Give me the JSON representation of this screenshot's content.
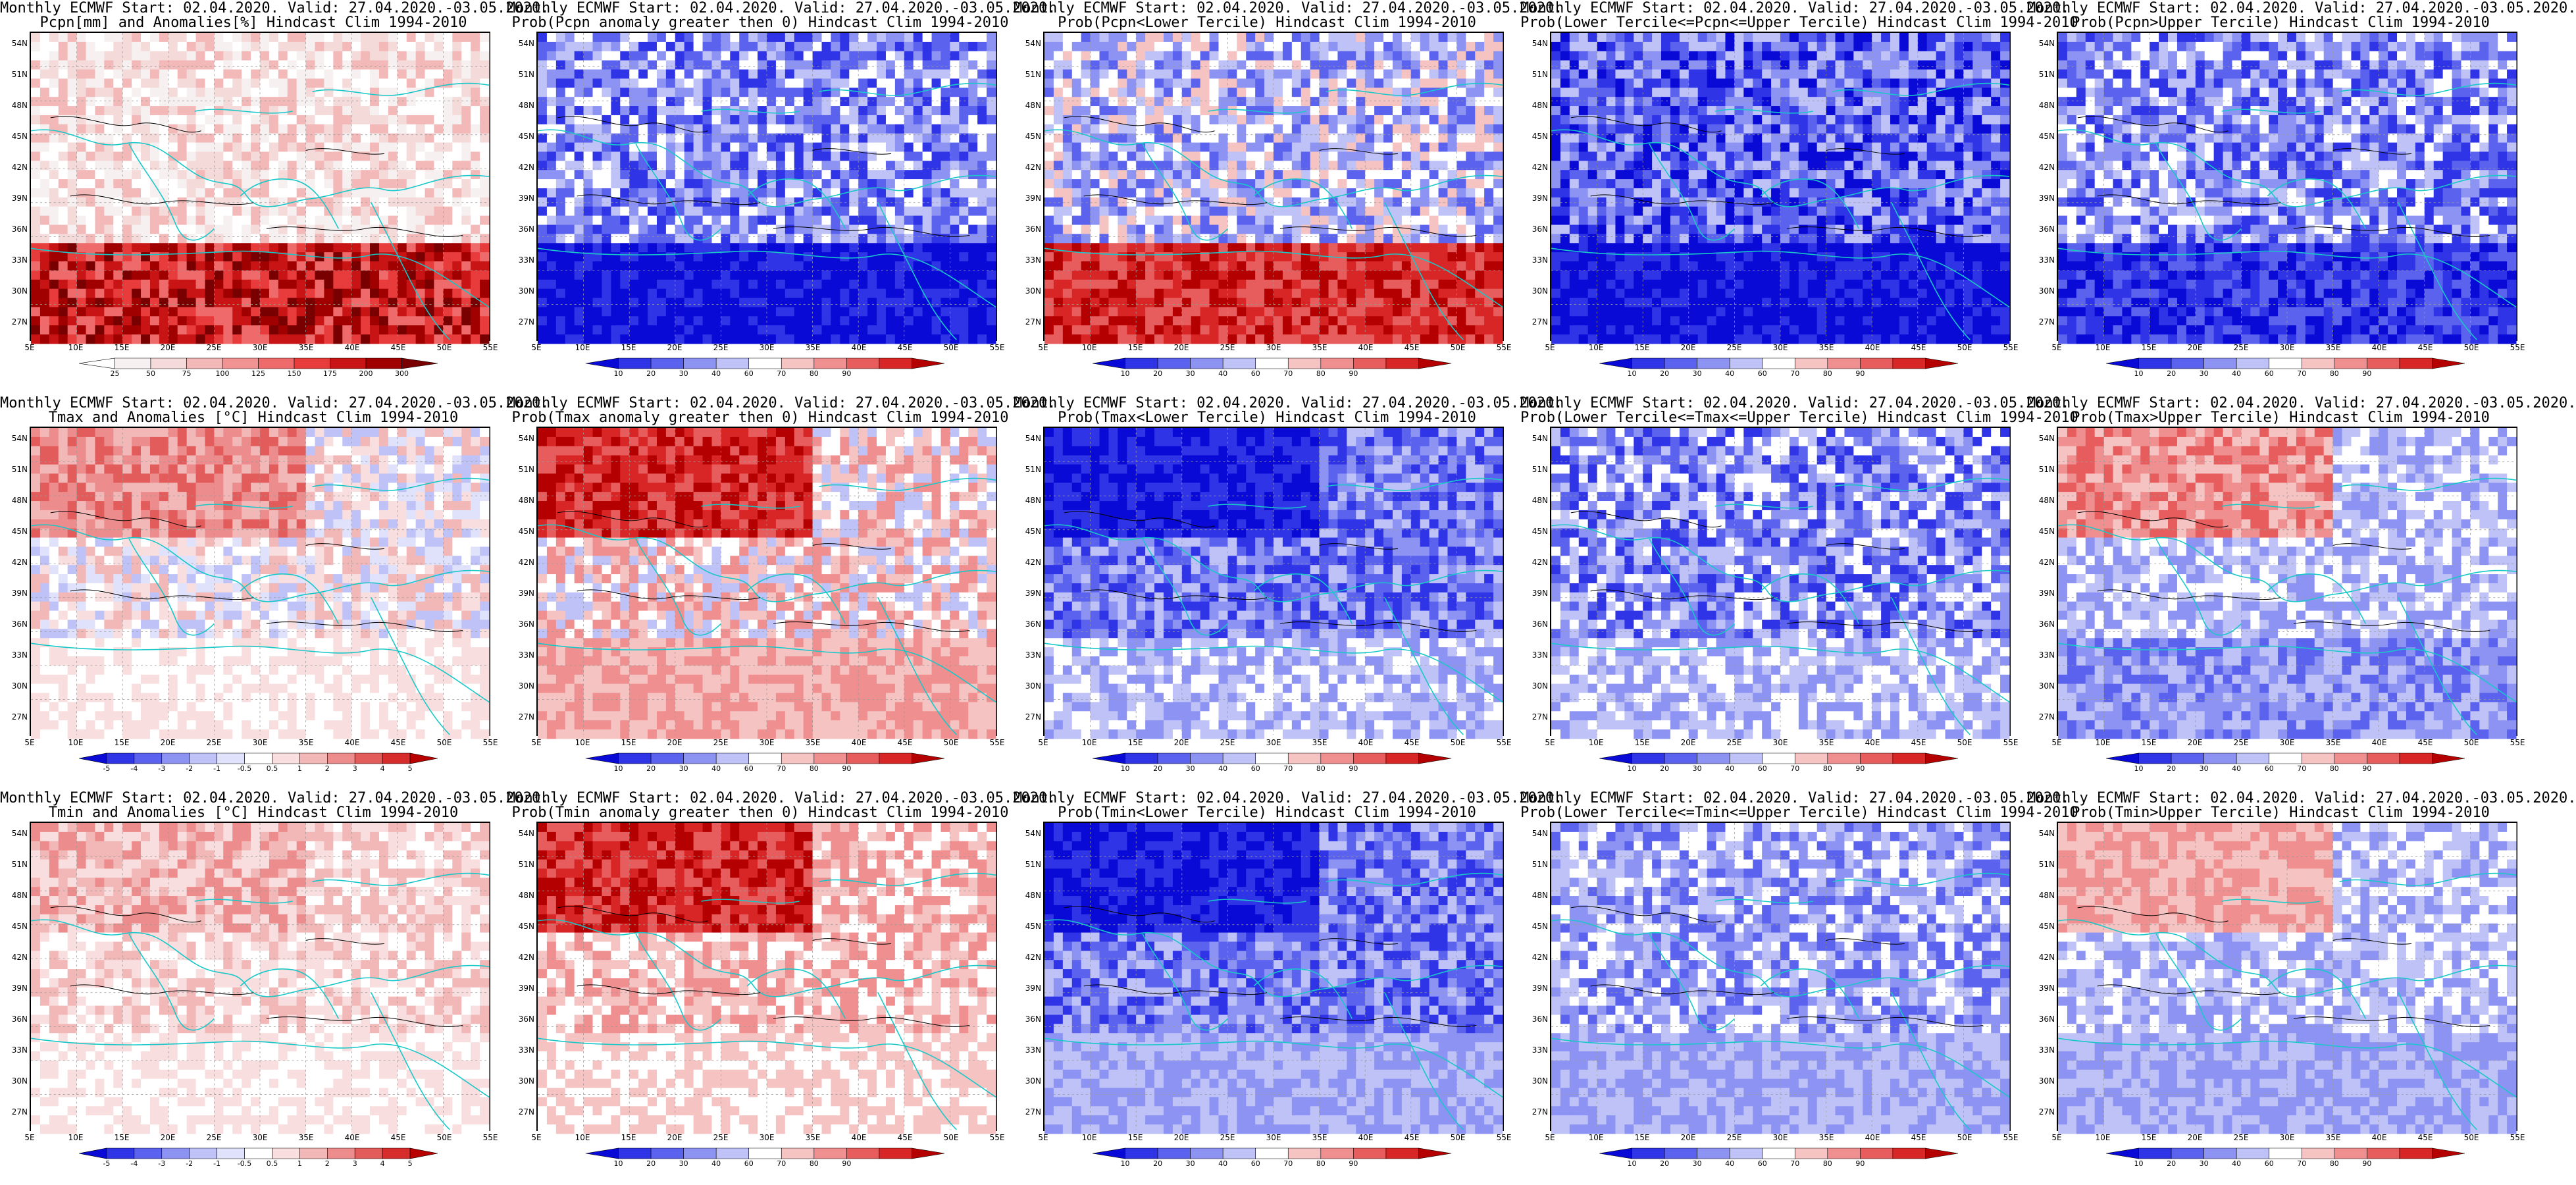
{
  "axes": {
    "y_ticks": [
      "54N",
      "51N",
      "48N",
      "45N",
      "42N",
      "39N",
      "36N",
      "33N",
      "30N",
      "27N"
    ],
    "x_ticks": [
      "5E",
      "10E",
      "15E",
      "20E",
      "25E",
      "30E",
      "35E",
      "40E",
      "45E",
      "50E",
      "55E"
    ]
  },
  "colorbars": {
    "anom_pcpn": {
      "labels": [
        "25",
        "50",
        "75",
        "100",
        "125",
        "150",
        "175",
        "200",
        "300"
      ]
    },
    "prob": {
      "labels": [
        "10",
        "20",
        "30",
        "40",
        "60",
        "70",
        "80",
        "90"
      ]
    },
    "anom_temp": {
      "labels": [
        "-5",
        "-4",
        "-3",
        "-2",
        "-1",
        "-0.5",
        "0.5",
        "1",
        "2",
        "3",
        "4",
        "5"
      ]
    }
  },
  "palettes": {
    "anom_pcpn": [
      "#ffffff",
      "#f7f0f0",
      "#f5dada",
      "#f3b9b9",
      "#f29393",
      "#ef6a6a",
      "#e83b3b",
      "#c81414",
      "#a00000",
      "#780000"
    ],
    "prob": [
      "#0a0ad6",
      "#2f34e6",
      "#5b63ee",
      "#8d93f3",
      "#bfc2f7",
      "#ffffff",
      "#f6c3c3",
      "#ef8f8f",
      "#e75d5d",
      "#d82626",
      "#b40000"
    ],
    "anom_temp": [
      "#0a0ad6",
      "#2f34e6",
      "#5b63ee",
      "#8d93f3",
      "#bfc2f7",
      "#e0e2fb",
      "#ffffff",
      "#f8dede",
      "#f2b7b7",
      "#ec8c8c",
      "#e35c5c",
      "#d62c2c",
      "#b80000"
    ]
  },
  "panels": [
    {
      "title1": "Monthly ECMWF Start: 02.04.2020. Valid: 27.04.2020.-03.05.2020.",
      "title2": "Pcpn[mm] and Anomalies[%] Hindcast Clim 1994-2010",
      "colorbar": "anom_pcpn"
    },
    {
      "title1": "Monthly ECMWF Start: 02.04.2020. Valid: 27.04.2020.-03.05.2020.",
      "title2": "Prob(Pcpn anomaly greater then 0) Hindcast Clim 1994-2010",
      "colorbar": "prob"
    },
    {
      "title1": "Monthly ECMWF Start: 02.04.2020. Valid: 27.04.2020.-03.05.2020.",
      "title2": "Prob(Pcpn<Lower Tercile) Hindcast Clim 1994-2010",
      "colorbar": "prob"
    },
    {
      "title1": "Monthly ECMWF Start: 02.04.2020. Valid: 27.04.2020.-03.05.2020.",
      "title2": "Prob(Lower Tercile<=Pcpn<=Upper Tercile) Hindcast Clim 1994-2010",
      "colorbar": "prob"
    },
    {
      "title1": "Monthly ECMWF Start: 02.04.2020. Valid: 27.04.2020.-03.05.2020.",
      "title2": "Prob(Pcpn>Upper Tercile) Hindcast Clim 1994-2010",
      "colorbar": "prob"
    },
    {
      "title1": "Monthly ECMWF Start: 02.04.2020. Valid: 27.04.2020.-03.05.2020.",
      "title2": "Tmax and Anomalies [°C] Hindcast Clim 1994-2010",
      "colorbar": "anom_temp"
    },
    {
      "title1": "Monthly ECMWF Start: 02.04.2020. Valid: 27.04.2020.-03.05.2020.",
      "title2": "Prob(Tmax anomaly greater then 0) Hindcast Clim 1994-2010",
      "colorbar": "prob"
    },
    {
      "title1": "Monthly ECMWF Start: 02.04.2020. Valid: 27.04.2020.-03.05.2020.",
      "title2": "Prob(Tmax<Lower Tercile) Hindcast Clim 1994-2010",
      "colorbar": "prob"
    },
    {
      "title1": "Monthly ECMWF Start: 02.04.2020. Valid: 27.04.2020.-03.05.2020.",
      "title2": "Prob(Lower Tercile<=Tmax<=Upper Tercile) Hindcast Clim 1994-2010",
      "colorbar": "prob"
    },
    {
      "title1": "Monthly ECMWF Start: 02.04.2020. Valid: 27.04.2020.-03.05.2020.",
      "title2": "Prob(Tmax>Upper Tercile) Hindcast Clim 1994-2010",
      "colorbar": "prob"
    },
    {
      "title1": "Monthly ECMWF Start: 02.04.2020. Valid: 27.04.2020.-03.05.2020.",
      "title2": "Tmin and Anomalies [°C] Hindcast Clim 1994-2010",
      "colorbar": "anom_temp"
    },
    {
      "title1": "Monthly ECMWF Start: 02.04.2020. Valid: 27.04.2020.-03.05.2020.",
      "title2": "Prob(Tmin anomaly greater then 0) Hindcast Clim 1994-2010",
      "colorbar": "prob"
    },
    {
      "title1": "Monthly ECMWF Start: 02.04.2020. Valid: 27.04.2020.-03.05.2020.",
      "title2": "Prob(Tmin<Lower Tercile) Hindcast Clim 1994-2010",
      "colorbar": "prob"
    },
    {
      "title1": "Monthly ECMWF Start: 02.04.2020. Valid: 27.04.2020.-03.05.2020.",
      "title2": "Prob(Lower Tercile<=Tmin<=Upper Tercile) Hindcast Clim 1994-2010",
      "colorbar": "prob"
    },
    {
      "title1": "Monthly ECMWF Start: 02.04.2020. Valid: 27.04.2020.-03.05.2020.",
      "title2": "Prob(Tmin>Upper Tercile) Hindcast Clim 1994-2010",
      "colorbar": "prob"
    }
  ],
  "colors": {
    "coastline": "#18c8c8",
    "contour": "#000000",
    "gridline": "#9a9a9a"
  }
}
